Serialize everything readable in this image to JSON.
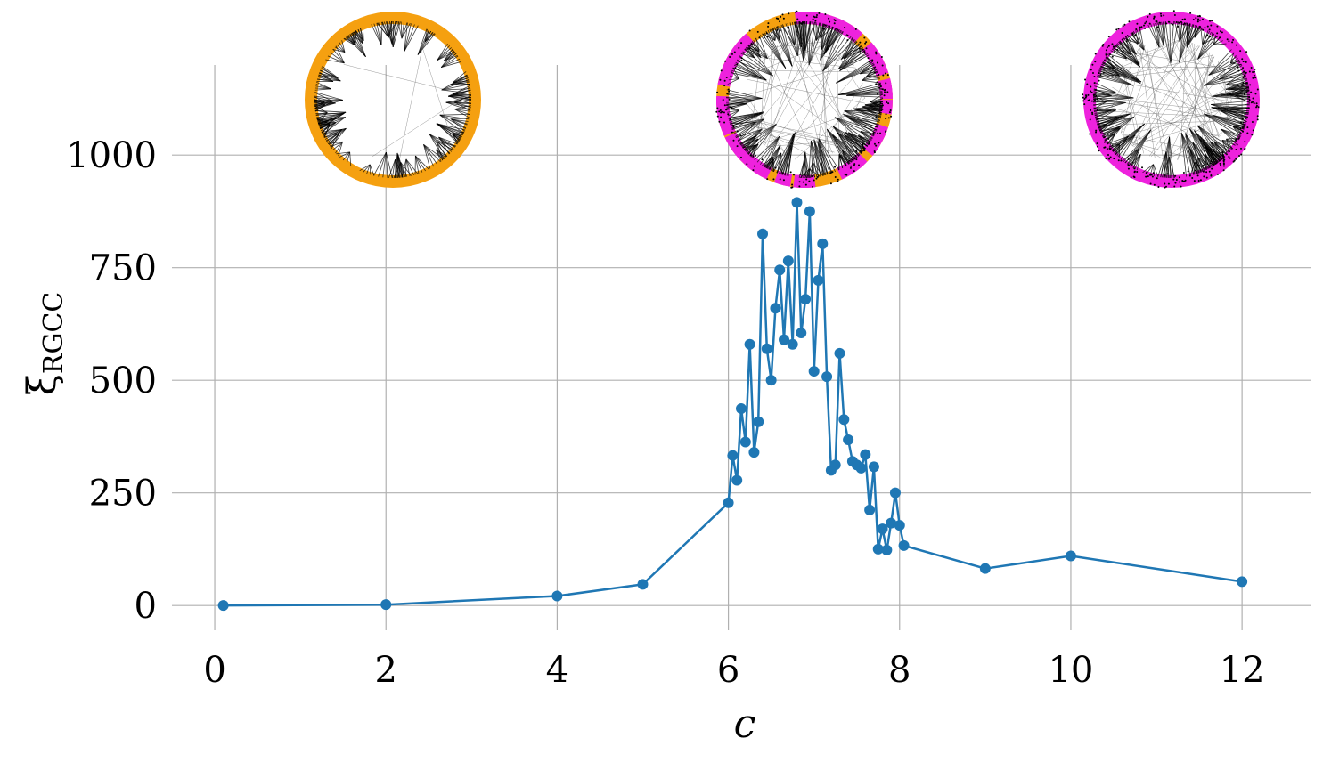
{
  "chart_data": {
    "type": "line",
    "title": "",
    "xlabel": "c",
    "ylabel": "ξ",
    "ylabel_subscript": "RGCC",
    "xlim": [
      -0.5,
      12.8
    ],
    "ylim": [
      -55,
      1200
    ],
    "xticks": [
      0,
      2,
      4,
      6,
      8,
      10,
      12
    ],
    "xtick_labels": [
      "0",
      "2",
      "4",
      "6",
      "8",
      "10",
      "12"
    ],
    "yticks": [
      0,
      250,
      500,
      750,
      1000
    ],
    "ytick_labels": [
      "0",
      "250",
      "500",
      "750",
      "1000"
    ],
    "grid": true,
    "legend": "none",
    "series_color": "#1f77b4",
    "series": [
      {
        "x": [
          0.1,
          2,
          4,
          5,
          6,
          6.05,
          6.1,
          6.15,
          6.2,
          6.25,
          6.3,
          6.35,
          6.4,
          6.45,
          6.5,
          6.55,
          6.6,
          6.65,
          6.7,
          6.75,
          6.8,
          6.85,
          6.9,
          6.95,
          7,
          7.05,
          7.1,
          7.15,
          7.2,
          7.25,
          7.3,
          7.35,
          7.4,
          7.45,
          7.5,
          7.55,
          7.6,
          7.65,
          7.7,
          7.75,
          7.8,
          7.85,
          7.9,
          7.95,
          8,
          8.05,
          9,
          10,
          12
        ],
        "y": [
          0,
          2,
          21,
          47,
          228,
          333,
          278,
          437,
          363,
          580,
          340,
          408,
          825,
          570,
          500,
          660,
          745,
          590,
          765,
          580,
          895,
          605,
          680,
          875,
          520,
          722,
          803,
          508,
          300,
          312,
          560,
          413,
          368,
          320,
          312,
          305,
          335,
          212,
          308,
          125,
          170,
          123,
          183,
          250,
          178,
          133,
          82,
          110,
          53
        ]
      }
    ],
    "network_insets": [
      {
        "name": "network-inset-low-c",
        "near_x": 2,
        "node_colors": [
          "#f5a010"
        ],
        "edge_color": "#000000"
      },
      {
        "name": "network-inset-critical-c",
        "near_x": 6.8,
        "node_colors": [
          "#f5a010",
          "#ee22dd"
        ],
        "edge_color": "#000000"
      },
      {
        "name": "network-inset-high-c",
        "near_x": 10,
        "node_colors": [
          "#ee22dd"
        ],
        "edge_color": "#000000"
      }
    ]
  }
}
